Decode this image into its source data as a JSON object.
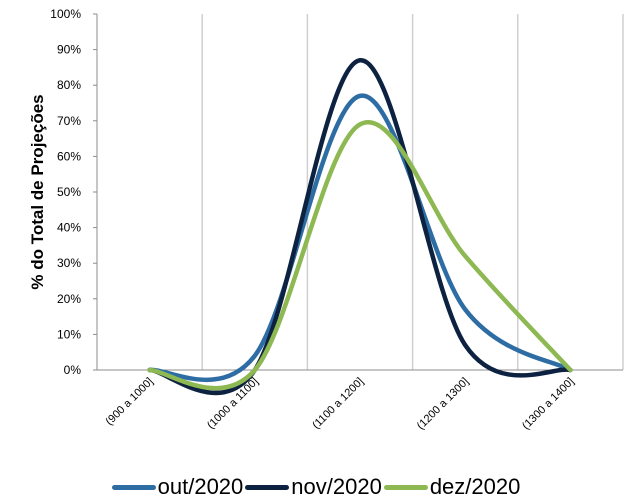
{
  "chart_data": {
    "type": "line",
    "title": "",
    "xlabel": "",
    "ylabel": "% do Total de Projeções",
    "categories": [
      "(900 a 1000]",
      "(1000 a 1100]",
      "(1100 a 1200]",
      "(1200 a 1300]",
      "(1300 a 1400]"
    ],
    "ylim": [
      0,
      100
    ],
    "yticks": [
      "0%",
      "10%",
      "20%",
      "30%",
      "40%",
      "50%",
      "60%",
      "70%",
      "80%",
      "90%",
      "100%"
    ],
    "grid": "vertical",
    "legend_position": "bottom",
    "series": [
      {
        "name": "out/2020",
        "color": "#2e6da4",
        "values": [
          0,
          4,
          77,
          17,
          0
        ]
      },
      {
        "name": "nov/2020",
        "color": "#0d2240",
        "values": [
          0,
          0,
          87,
          7,
          0
        ]
      },
      {
        "name": "dez/2020",
        "color": "#8db852",
        "values": [
          0,
          0,
          69,
          32,
          0
        ]
      }
    ]
  }
}
